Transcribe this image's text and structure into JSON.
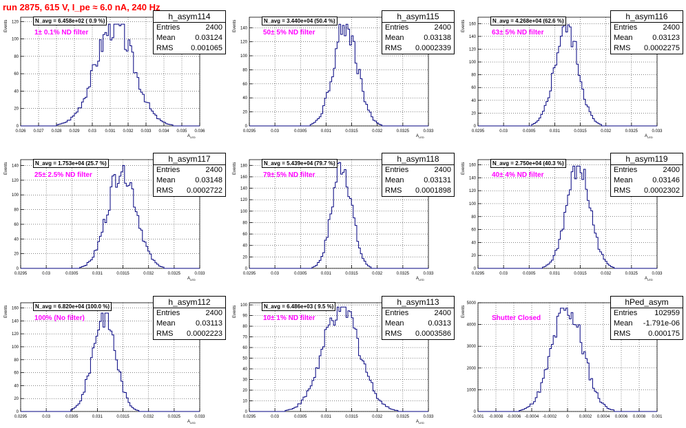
{
  "run_title": "run 2875,   615 V, I_pe ≈ 6.0 nA, 240 Hz",
  "colors": {
    "title": "#ff0000",
    "histogram": "#00007f",
    "filter_label": "#ff00ff",
    "grid": "#000000"
  },
  "chart_data": [
    {
      "type": "histogram",
      "name": "h_asym114",
      "navg_text": "N_avg = 6.458e+02 ( 0.9 %)",
      "filter_label": "1± 0.1% ND filter",
      "ylabel": "Events",
      "xlabel": "A_LED",
      "entries": "2400",
      "mean": "0.03124",
      "rms": "0.001065",
      "mean_value": 0.03124,
      "rms_value": 0.001065,
      "peak": 117,
      "xlim": [
        0.026,
        0.036
      ],
      "ylim": [
        0,
        125
      ],
      "xticks": [
        "0.026",
        "0.027",
        "0.028",
        "0.029",
        "0.03",
        "0.031",
        "0.032",
        "0.033",
        "0.034",
        "0.035",
        "0.036"
      ],
      "yticks": [
        "0",
        "20",
        "40",
        "60",
        "80",
        "100",
        "120"
      ],
      "grid": true
    },
    {
      "type": "histogram",
      "name": "h_asym115",
      "navg_text": "N_avg = 3.440e+04 (50.4 %)",
      "filter_label": "50± 5% ND filter",
      "ylabel": "Events",
      "xlabel": "A_LED",
      "entries": "2400",
      "mean": "0.03138",
      "rms": "0.0002339",
      "mean_value": 0.03138,
      "rms_value": 0.0002339,
      "peak": 145,
      "xlim": [
        0.0295,
        0.033
      ],
      "ylim": [
        0,
        155
      ],
      "xticks": [
        "0.0295",
        "0.03",
        "0.0305",
        "0.031",
        "0.0315",
        "0.032",
        "0.0325",
        "0.033"
      ],
      "yticks": [
        "0",
        "20",
        "40",
        "60",
        "80",
        "100",
        "120",
        "140"
      ],
      "grid": true
    },
    {
      "type": "histogram",
      "name": "h_asym116",
      "navg_text": "N_avg = 4.268e+04 (62.6 %)",
      "filter_label": "63± 5% ND filter",
      "ylabel": "Events",
      "xlabel": "A_LED",
      "entries": "2400",
      "mean": "0.03123",
      "rms": "0.0002275",
      "mean_value": 0.03123,
      "rms_value": 0.0002275,
      "peak": 158,
      "xlim": [
        0.0295,
        0.033
      ],
      "ylim": [
        0,
        170
      ],
      "xticks": [
        "0.0295",
        "0.03",
        "0.0305",
        "0.031",
        "0.0315",
        "0.032",
        "0.0325",
        "0.033"
      ],
      "yticks": [
        "0",
        "20",
        "40",
        "60",
        "80",
        "100",
        "120",
        "140",
        "160"
      ],
      "grid": true
    },
    {
      "type": "histogram",
      "name": "h_asym117",
      "navg_text": "N_avg = 1.753e+04 (25.7 %)",
      "filter_label": "25± 2.5% ND filter",
      "ylabel": "Events",
      "xlabel": "A_LED",
      "entries": "2400",
      "mean": "0.03148",
      "rms": "0.0002722",
      "mean_value": 0.03148,
      "rms_value": 0.0002722,
      "peak": 140,
      "xlim": [
        0.0295,
        0.033
      ],
      "ylim": [
        0,
        148
      ],
      "xticks": [
        "0.0295",
        "0.03",
        "0.0305",
        "0.031",
        "0.0315",
        "0.032",
        "0.0325",
        "0.033"
      ],
      "yticks": [
        "0",
        "20",
        "40",
        "60",
        "80",
        "100",
        "120",
        "140"
      ],
      "grid": true
    },
    {
      "type": "histogram",
      "name": "h_asym118",
      "navg_text": "N_avg = 5.439e+04 (79.7 %)",
      "filter_label": "79± 5% ND filter",
      "ylabel": "Events",
      "xlabel": "A_LED",
      "entries": "2400",
      "mean": "0.03131",
      "rms": "0.0001898",
      "mean_value": 0.03131,
      "rms_value": 0.0001898,
      "peak": 185,
      "xlim": [
        0.0295,
        0.033
      ],
      "ylim": [
        0,
        190
      ],
      "xticks": [
        "0.0295",
        "0.03",
        "0.0305",
        "0.031",
        "0.0315",
        "0.032",
        "0.0325",
        "0.033"
      ],
      "yticks": [
        "0",
        "20",
        "40",
        "60",
        "80",
        "100",
        "120",
        "140",
        "160",
        "180"
      ],
      "grid": true
    },
    {
      "type": "histogram",
      "name": "h_asym119",
      "navg_text": "N_avg = 2.750e+04 (40.3 %)",
      "filter_label": "40± 4% ND filter",
      "ylabel": "Events",
      "xlabel": "A_LED",
      "entries": "2400",
      "mean": "0.03146",
      "rms": "0.0002302",
      "mean_value": 0.03146,
      "rms_value": 0.0002302,
      "peak": 158,
      "xlim": [
        0.0295,
        0.033
      ],
      "ylim": [
        0,
        168
      ],
      "xticks": [
        "0.0295",
        "0.03",
        "0.0305",
        "0.031",
        "0.0315",
        "0.032",
        "0.0325",
        "0.033"
      ],
      "yticks": [
        "0",
        "20",
        "40",
        "60",
        "80",
        "100",
        "120",
        "140",
        "160"
      ],
      "grid": true
    },
    {
      "type": "histogram",
      "name": "h_asym112",
      "navg_text": "N_avg = 6.820e+04 (100.0 %)",
      "filter_label": "100% (No filter)",
      "ylabel": "Events",
      "xlabel": "A_LED",
      "entries": "2400",
      "mean": "0.03113",
      "rms": "0.0002223",
      "mean_value": 0.03113,
      "rms_value": 0.0002223,
      "peak": 152,
      "xlim": [
        0.0295,
        0.033
      ],
      "ylim": [
        0,
        168
      ],
      "xticks": [
        "0.0295",
        "0.03",
        "0.0305",
        "0.031",
        "0.0315",
        "0.032",
        "0.0325",
        "0.033"
      ],
      "yticks": [
        "0",
        "20",
        "40",
        "60",
        "80",
        "100",
        "120",
        "140",
        "160"
      ],
      "grid": true
    },
    {
      "type": "histogram",
      "name": "h_asym113",
      "navg_text": "N_avg = 6.486e+03 ( 9.5 %)",
      "filter_label": "10± 1% ND filter",
      "ylabel": "Events",
      "xlabel": "A_LED",
      "entries": "2400",
      "mean": "0.0313",
      "rms": "0.0003586",
      "mean_value": 0.0313,
      "rms_value": 0.0003586,
      "peak": 98,
      "xlim": [
        0.0295,
        0.033
      ],
      "ylim": [
        0,
        102
      ],
      "xticks": [
        "0.0295",
        "0.03",
        "0.0305",
        "0.031",
        "0.0315",
        "0.032",
        "0.0325",
        "0.033"
      ],
      "yticks": [
        "0",
        "10",
        "20",
        "30",
        "40",
        "50",
        "60",
        "70",
        "80",
        "90",
        "100"
      ],
      "grid": true
    },
    {
      "type": "histogram",
      "name": "hPed_asym",
      "navg_text": "",
      "filter_label": "Shutter Closed",
      "ylabel": "Events",
      "xlabel": "",
      "entries": "102959",
      "mean": "-1.791e-06",
      "rms": "0.000175",
      "mean_value": -1.791e-06,
      "rms_value": 0.000175,
      "peak": 4750,
      "xlim": [
        -0.001,
        0.001
      ],
      "ylim": [
        0,
        5000
      ],
      "xticks": [
        "-0.001",
        "-0.0008",
        "-0.0006",
        "-0.0004",
        "-0.0002",
        "0",
        "0.0002",
        "0.0004",
        "0.0006",
        "0.0008",
        "0.001"
      ],
      "yticks": [
        "0",
        "1000",
        "2000",
        "3000",
        "4000",
        "5000"
      ],
      "grid": true
    }
  ]
}
